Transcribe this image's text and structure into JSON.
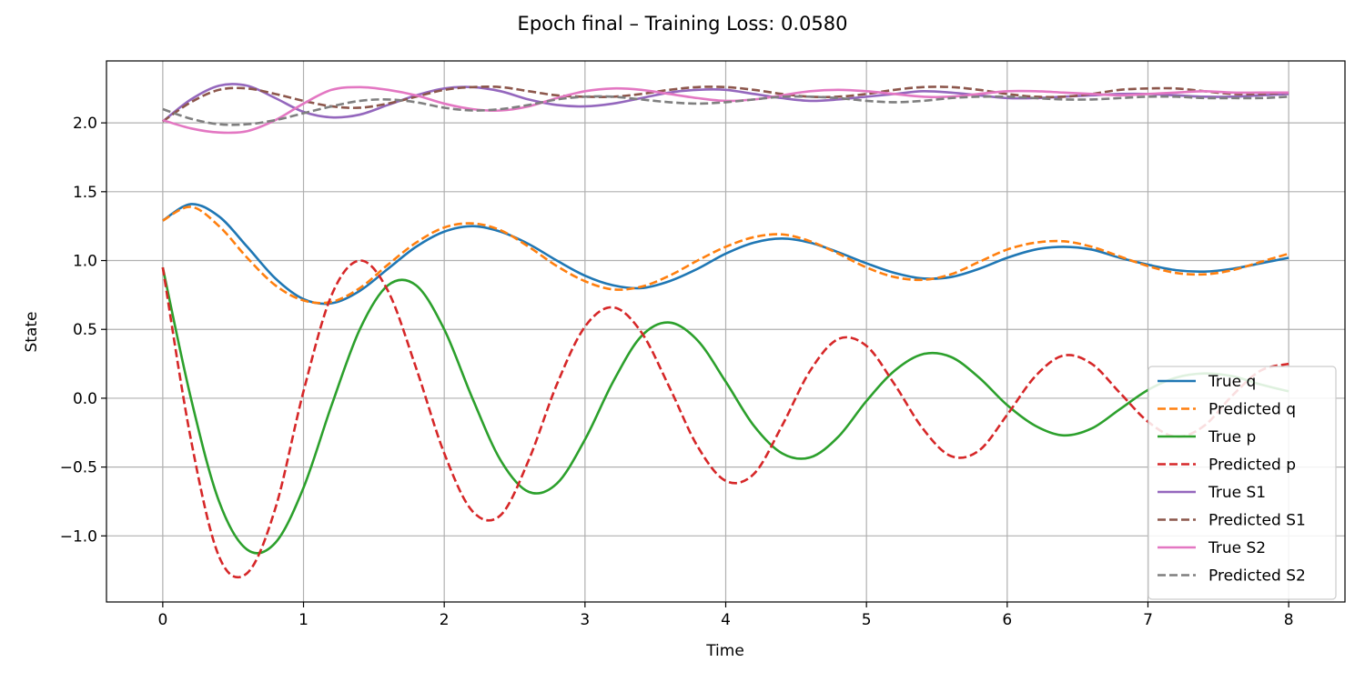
{
  "chart_data": {
    "type": "line",
    "title": "Epoch final – Training Loss: 0.0580",
    "xlabel": "Time",
    "ylabel": "State",
    "xlim": [
      -0.4,
      8.4
    ],
    "ylim": [
      -1.48,
      2.45
    ],
    "xticks": [
      0,
      1,
      2,
      3,
      4,
      5,
      6,
      7,
      8
    ],
    "xtick_labels": [
      "0",
      "1",
      "2",
      "3",
      "4",
      "5",
      "6",
      "7",
      "8"
    ],
    "yticks": [
      -1.0,
      -0.5,
      0.0,
      0.5,
      1.0,
      1.5,
      2.0
    ],
    "ytick_labels": [
      "−1.0",
      "−0.5",
      "0.0",
      "0.5",
      "1.0",
      "1.5",
      "2.0"
    ],
    "grid": true,
    "legend_position": "lower-right",
    "x": [
      0,
      0.2,
      0.4,
      0.6,
      0.8,
      1.0,
      1.2,
      1.4,
      1.6,
      1.8,
      2.0,
      2.2,
      2.4,
      2.6,
      2.8,
      3.0,
      3.2,
      3.4,
      3.6,
      3.8,
      4.0,
      4.2,
      4.4,
      4.6,
      4.8,
      5.0,
      5.2,
      5.4,
      5.6,
      5.8,
      6.0,
      6.2,
      6.4,
      6.6,
      6.8,
      7.0,
      7.2,
      7.4,
      7.6,
      7.8,
      8.0
    ],
    "series": [
      {
        "name": "True q",
        "color": "#1f77b4",
        "dash": "solid",
        "values": [
          1.29,
          1.41,
          1.32,
          1.1,
          0.87,
          0.72,
          0.69,
          0.78,
          0.94,
          1.1,
          1.21,
          1.25,
          1.21,
          1.12,
          1.0,
          0.89,
          0.82,
          0.8,
          0.85,
          0.94,
          1.05,
          1.13,
          1.16,
          1.13,
          1.06,
          0.98,
          0.91,
          0.87,
          0.88,
          0.94,
          1.02,
          1.08,
          1.1,
          1.08,
          1.02,
          0.97,
          0.93,
          0.92,
          0.94,
          0.98,
          1.02
        ]
      },
      {
        "name": "Predicted q",
        "color": "#ff7f0e",
        "dash": "dashed",
        "values": [
          1.29,
          1.39,
          1.25,
          1.02,
          0.82,
          0.71,
          0.7,
          0.8,
          0.97,
          1.13,
          1.24,
          1.27,
          1.22,
          1.1,
          0.96,
          0.85,
          0.79,
          0.81,
          0.89,
          1.0,
          1.1,
          1.17,
          1.19,
          1.14,
          1.05,
          0.95,
          0.88,
          0.86,
          0.9,
          0.99,
          1.08,
          1.13,
          1.14,
          1.1,
          1.03,
          0.96,
          0.91,
          0.9,
          0.93,
          0.99,
          1.05
        ]
      },
      {
        "name": "True p",
        "color": "#2ca02c",
        "dash": "solid",
        "values": [
          0.95,
          0.0,
          -0.75,
          -1.1,
          -1.05,
          -0.65,
          -0.05,
          0.5,
          0.82,
          0.82,
          0.5,
          0.0,
          -0.45,
          -0.68,
          -0.62,
          -0.3,
          0.12,
          0.45,
          0.55,
          0.42,
          0.12,
          -0.2,
          -0.4,
          -0.43,
          -0.28,
          -0.02,
          0.2,
          0.32,
          0.3,
          0.15,
          -0.05,
          -0.2,
          -0.27,
          -0.22,
          -0.08,
          0.06,
          0.15,
          0.18,
          0.16,
          0.1,
          0.05
        ]
      },
      {
        "name": "Predicted p",
        "color": "#d62728",
        "dash": "dashed",
        "values": [
          0.95,
          -0.3,
          -1.15,
          -1.27,
          -0.8,
          0.05,
          0.75,
          1.0,
          0.78,
          0.22,
          -0.4,
          -0.82,
          -0.85,
          -0.45,
          0.1,
          0.52,
          0.66,
          0.48,
          0.08,
          -0.35,
          -0.6,
          -0.55,
          -0.2,
          0.2,
          0.43,
          0.38,
          0.1,
          -0.22,
          -0.42,
          -0.38,
          -0.12,
          0.16,
          0.31,
          0.25,
          0.04,
          -0.17,
          -0.28,
          -0.2,
          0.02,
          0.2,
          0.25
        ]
      },
      {
        "name": "True S1",
        "color": "#9467bd",
        "dash": "solid",
        "values": [
          2.01,
          2.17,
          2.27,
          2.27,
          2.18,
          2.08,
          2.04,
          2.06,
          2.13,
          2.2,
          2.25,
          2.26,
          2.23,
          2.17,
          2.13,
          2.12,
          2.14,
          2.18,
          2.22,
          2.24,
          2.24,
          2.21,
          2.18,
          2.16,
          2.17,
          2.19,
          2.21,
          2.23,
          2.22,
          2.2,
          2.18,
          2.18,
          2.19,
          2.2,
          2.21,
          2.21,
          2.2,
          2.19,
          2.19,
          2.2,
          2.21
        ]
      },
      {
        "name": "Predicted S1",
        "color": "#8c564b",
        "dash": "dashed",
        "values": [
          2.01,
          2.15,
          2.24,
          2.25,
          2.21,
          2.16,
          2.12,
          2.11,
          2.14,
          2.19,
          2.24,
          2.26,
          2.26,
          2.23,
          2.2,
          2.19,
          2.19,
          2.21,
          2.24,
          2.26,
          2.26,
          2.24,
          2.21,
          2.19,
          2.19,
          2.21,
          2.24,
          2.26,
          2.26,
          2.24,
          2.21,
          2.19,
          2.19,
          2.21,
          2.24,
          2.25,
          2.25,
          2.23,
          2.21,
          2.21,
          2.22
        ]
      },
      {
        "name": "True S2",
        "color": "#e377c2",
        "dash": "solid",
        "values": [
          2.02,
          1.96,
          1.93,
          1.94,
          2.02,
          2.14,
          2.24,
          2.26,
          2.24,
          2.2,
          2.14,
          2.1,
          2.09,
          2.12,
          2.18,
          2.23,
          2.25,
          2.24,
          2.21,
          2.18,
          2.16,
          2.17,
          2.2,
          2.23,
          2.24,
          2.23,
          2.21,
          2.19,
          2.19,
          2.21,
          2.23,
          2.23,
          2.22,
          2.21,
          2.2,
          2.21,
          2.22,
          2.23,
          2.22,
          2.22,
          2.22
        ]
      },
      {
        "name": "Predicted S2",
        "color": "#7f7f7f",
        "dash": "dashed",
        "values": [
          2.1,
          2.03,
          1.99,
          1.99,
          2.02,
          2.07,
          2.12,
          2.16,
          2.17,
          2.15,
          2.11,
          2.09,
          2.1,
          2.13,
          2.17,
          2.19,
          2.19,
          2.17,
          2.15,
          2.14,
          2.15,
          2.17,
          2.19,
          2.19,
          2.18,
          2.16,
          2.15,
          2.16,
          2.18,
          2.19,
          2.19,
          2.18,
          2.17,
          2.17,
          2.18,
          2.19,
          2.19,
          2.18,
          2.18,
          2.18,
          2.19
        ]
      }
    ]
  }
}
